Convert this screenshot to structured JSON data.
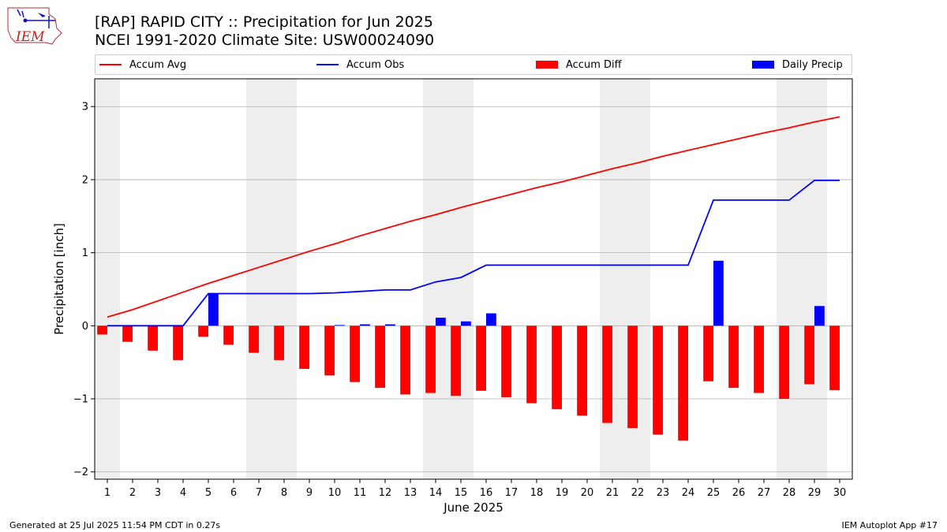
{
  "header": {
    "title_line1": "[RAP] RAPID CITY :: Precipitation for Jun 2025",
    "title_line2": "NCEI 1991-2020 Climate Site: USW00024090",
    "logo_text": "IEM"
  },
  "footer": {
    "generated": "Generated at 25 Jul 2025 11:54 PM CDT in 0.27s",
    "app": "IEM Autoplot App #17"
  },
  "colors": {
    "avg": "#ff0000",
    "obs": "#0000ff",
    "diff": "#ff0000",
    "daily": "#0000ff",
    "weekend_shade": "#eeeeee",
    "grid": "#b0b0b0"
  },
  "chart_data": {
    "type": "bar",
    "xlabel": "June 2025",
    "ylabel": "Precipitation [inch]",
    "ylim": [
      -2.1,
      3.38
    ],
    "yticks": [
      -2,
      -1,
      0,
      1,
      2,
      3
    ],
    "ytick_labels": [
      "−2",
      "−1",
      "0",
      "1",
      "2",
      "3"
    ],
    "x": [
      1,
      2,
      3,
      4,
      5,
      6,
      7,
      8,
      9,
      10,
      11,
      12,
      13,
      14,
      15,
      16,
      17,
      18,
      19,
      20,
      21,
      22,
      23,
      24,
      25,
      26,
      27,
      28,
      29,
      30
    ],
    "xlim": [
      0.5,
      30.5
    ],
    "grid": "horizontal",
    "legend_placement": "top",
    "weekend_shading": [
      [
        0.5,
        1.5
      ],
      [
        6.5,
        8.5
      ],
      [
        13.5,
        15.5
      ],
      [
        20.5,
        22.5
      ],
      [
        27.5,
        29.5
      ]
    ],
    "series": [
      {
        "name": "Accum Avg",
        "kind": "line",
        "values": [
          0.12,
          0.22,
          0.34,
          0.46,
          0.58,
          0.69,
          0.8,
          0.91,
          1.02,
          1.12,
          1.23,
          1.33,
          1.43,
          1.52,
          1.62,
          1.71,
          1.8,
          1.89,
          1.97,
          2.06,
          2.15,
          2.23,
          2.32,
          2.4,
          2.48,
          2.56,
          2.64,
          2.71,
          2.79,
          2.86
        ]
      },
      {
        "name": "Accum Obs",
        "kind": "line",
        "values": [
          0,
          0,
          0,
          0,
          0.44,
          0.44,
          0.44,
          0.44,
          0.44,
          0.45,
          0.47,
          0.49,
          0.49,
          0.6,
          0.66,
          0.83,
          0.83,
          0.83,
          0.83,
          0.83,
          0.83,
          0.83,
          0.83,
          0.83,
          1.72,
          1.72,
          1.72,
          1.72,
          1.99,
          1.99
        ]
      },
      {
        "name": "Accum Diff",
        "kind": "bar",
        "values": [
          -0.12,
          -0.22,
          -0.34,
          -0.47,
          -0.15,
          -0.26,
          -0.37,
          -0.47,
          -0.59,
          -0.68,
          -0.77,
          -0.85,
          -0.94,
          -0.92,
          -0.96,
          -0.89,
          -0.98,
          -1.06,
          -1.14,
          -1.23,
          -1.33,
          -1.4,
          -1.49,
          -1.57,
          -0.76,
          -0.85,
          -0.92,
          -1.0,
          -0.8,
          -0.88
        ]
      },
      {
        "name": "Daily Precip",
        "kind": "bar",
        "values": [
          0,
          0,
          0,
          0,
          0.44,
          0,
          0,
          0,
          0,
          0.01,
          0.02,
          0.02,
          0,
          0.11,
          0.06,
          0.17,
          0,
          0,
          0,
          0,
          0,
          0,
          0,
          0,
          0.89,
          0,
          0,
          0,
          0.27,
          0
        ]
      }
    ]
  }
}
